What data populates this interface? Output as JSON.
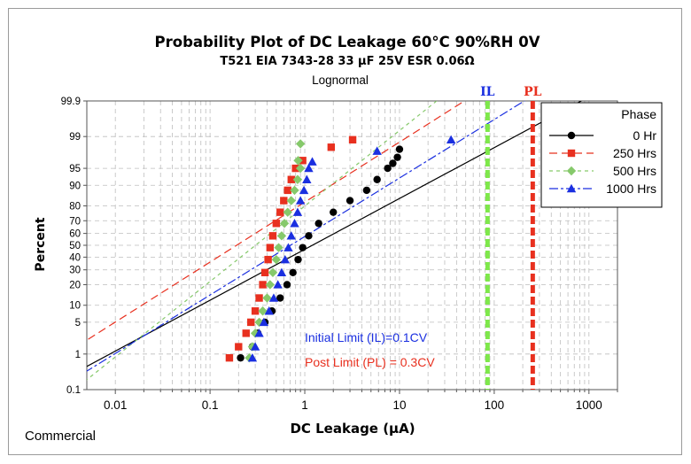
{
  "chart_data": {
    "type": "scatter",
    "title": "Probability Plot of DC Leakage  60°C 90%RH 0V",
    "subtitle": "T521 EIA  7343-28 33 µF 25V ESR 0.06Ω",
    "distribution": "Lognormal",
    "xlabel": "DC Leakage (µA)",
    "ylabel": "Percent",
    "x_scale": "log",
    "xlim": [
      0.005,
      2000
    ],
    "x_ticks": [
      "0.01",
      "0.1",
      "1",
      "10",
      "100",
      "1000"
    ],
    "y_scale": "normal-probability",
    "ylim": [
      0.1,
      99.9
    ],
    "y_ticks": [
      "0.1",
      "1",
      "5",
      "10",
      "20",
      "30",
      "40",
      "50",
      "60",
      "70",
      "80",
      "90",
      "95",
      "99",
      "99.9"
    ],
    "grid": true,
    "legend": {
      "title": "Phase",
      "placement": "top-right"
    },
    "series": [
      {
        "name": "0 Hr",
        "color": "#000000",
        "marker": "circle",
        "fit_mu": 0.08,
        "fit_sigma": 0.92,
        "points": [
          [
            0.21,
            0.8
          ],
          [
            0.28,
            1.5
          ],
          [
            0.32,
            3
          ],
          [
            0.38,
            5
          ],
          [
            0.45,
            8
          ],
          [
            0.55,
            13
          ],
          [
            0.65,
            20
          ],
          [
            0.75,
            28
          ],
          [
            0.85,
            38
          ],
          [
            0.95,
            48
          ],
          [
            1.1,
            58
          ],
          [
            1.4,
            68
          ],
          [
            2.0,
            76
          ],
          [
            3.0,
            83
          ],
          [
            4.5,
            88
          ],
          [
            5.8,
            92
          ],
          [
            7.5,
            95
          ],
          [
            8.5,
            96
          ],
          [
            9.5,
            97
          ],
          [
            10.0,
            98
          ]
        ]
      },
      {
        "name": "250 Hrs",
        "color": "#e8301f",
        "marker": "square",
        "fit_mu": -0.72,
        "fit_sigma": 0.78,
        "points": [
          [
            0.16,
            0.8
          ],
          [
            0.2,
            1.5
          ],
          [
            0.24,
            3
          ],
          [
            0.27,
            5
          ],
          [
            0.3,
            8
          ],
          [
            0.33,
            13
          ],
          [
            0.36,
            20
          ],
          [
            0.38,
            28
          ],
          [
            0.41,
            38
          ],
          [
            0.43,
            48
          ],
          [
            0.46,
            58
          ],
          [
            0.5,
            68
          ],
          [
            0.55,
            76
          ],
          [
            0.6,
            83
          ],
          [
            0.66,
            88
          ],
          [
            0.72,
            92
          ],
          [
            0.8,
            95
          ],
          [
            0.95,
            96.5
          ],
          [
            1.9,
            98.2
          ],
          [
            3.2,
            98.8
          ]
        ]
      },
      {
        "name": "500 Hrs",
        "color": "#86c96b",
        "marker": "diamond",
        "fit_mu": -0.52,
        "fit_sigma": 0.62,
        "points": [
          [
            0.26,
            0.8
          ],
          [
            0.28,
            1.5
          ],
          [
            0.3,
            3
          ],
          [
            0.33,
            5
          ],
          [
            0.36,
            8
          ],
          [
            0.4,
            13
          ],
          [
            0.43,
            20
          ],
          [
            0.46,
            28
          ],
          [
            0.5,
            38
          ],
          [
            0.53,
            48
          ],
          [
            0.57,
            58
          ],
          [
            0.61,
            68
          ],
          [
            0.66,
            76
          ],
          [
            0.72,
            83
          ],
          [
            0.78,
            88
          ],
          [
            0.84,
            92
          ],
          [
            0.9,
            95
          ],
          [
            0.85,
            96.5
          ],
          [
            0.9,
            98.5
          ]
        ]
      },
      {
        "name": "1000 Hrs",
        "color": "#1a2fe0",
        "marker": "triangle",
        "fit_mu": -0.15,
        "fit_sigma": 0.8,
        "points": [
          [
            0.28,
            0.8
          ],
          [
            0.3,
            1.5
          ],
          [
            0.33,
            3
          ],
          [
            0.37,
            5
          ],
          [
            0.42,
            8
          ],
          [
            0.47,
            13
          ],
          [
            0.52,
            20
          ],
          [
            0.57,
            28
          ],
          [
            0.62,
            38
          ],
          [
            0.67,
            48
          ],
          [
            0.72,
            58
          ],
          [
            0.78,
            68
          ],
          [
            0.84,
            76
          ],
          [
            0.9,
            83
          ],
          [
            0.98,
            88
          ],
          [
            1.05,
            92
          ],
          [
            1.1,
            95
          ],
          [
            1.2,
            96.3
          ],
          [
            5.8,
            97.8
          ],
          [
            35,
            98.8
          ]
        ]
      }
    ],
    "reference_lines": [
      {
        "label": "IL",
        "x": 85,
        "color": "#7ee84a",
        "label_color": "#1a2fe0"
      },
      {
        "label": "PL",
        "x": 255,
        "color": "#e8301f",
        "label_color": "#e8301f"
      }
    ],
    "annotations": [
      {
        "text": "Initial Limit (IL)=0.1CV",
        "color": "#1a2fe0"
      },
      {
        "text": "Post Limit (PL) = 0.3CV",
        "color": "#e8301f"
      }
    ],
    "footer": "Commercial"
  }
}
